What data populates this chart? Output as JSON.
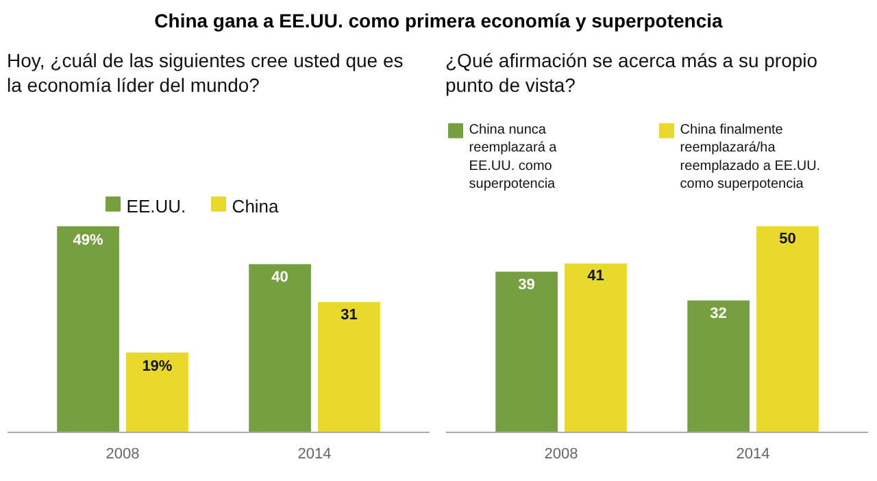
{
  "chart_data": [
    {
      "type": "bar",
      "title": "China gana a EE.UU. como primera economía y superpotencia",
      "subtitle": "Hoy, ¿cuál de las siguientes cree usted que es la economía líder del mundo?",
      "categories": [
        "2008",
        "2014"
      ],
      "legend": "top",
      "series": [
        {
          "name": "EE.UU.",
          "color": "#76a03f",
          "values": [
            49,
            40
          ],
          "value_labels": [
            "49%",
            "40"
          ]
        },
        {
          "name": "China",
          "color": "#e8d92c",
          "values": [
            19,
            31
          ],
          "value_labels": [
            "19%",
            "31"
          ]
        }
      ]
    },
    {
      "type": "bar",
      "subtitle": "¿Qué afirmación se acerca más a su propio punto de vista?",
      "categories": [
        "2008",
        "2014"
      ],
      "legend": "top",
      "data_labels": true,
      "series": [
        {
          "name": "China nunca reemplazará a EE.UU. como superpotencia",
          "color": "#76a03f",
          "values": [
            39,
            32
          ]
        },
        {
          "name": "China finalmente reemplazará/ha reemplazado a EE.UU. como superpotencia",
          "color": "#e8d92c",
          "values": [
            41,
            50
          ]
        }
      ]
    }
  ]
}
